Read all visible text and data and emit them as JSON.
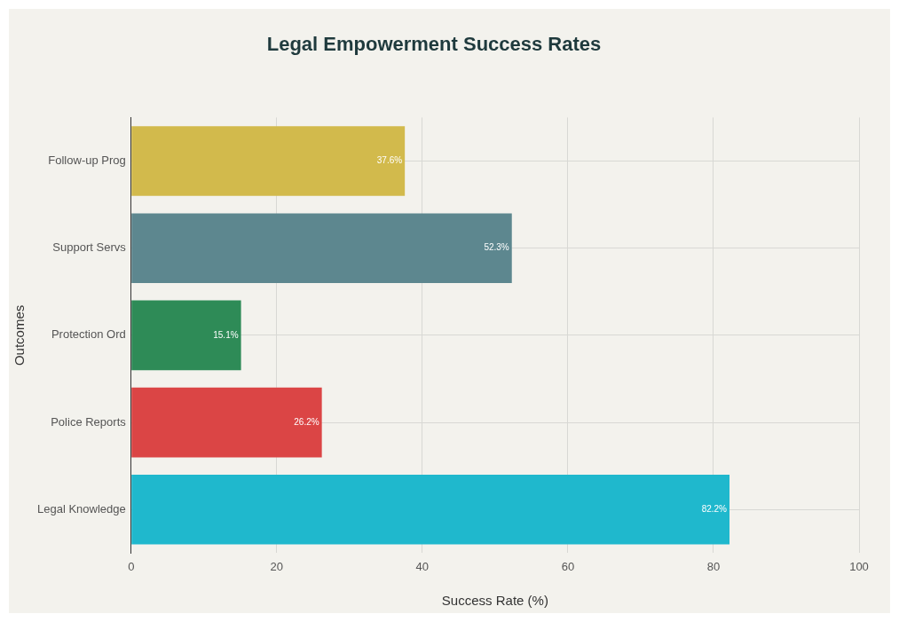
{
  "chart_data": {
    "type": "bar",
    "orientation": "horizontal",
    "title": "Legal Empowerment Success Rates",
    "xlabel": "Success Rate (%)",
    "ylabel": "Outcomes",
    "categories": [
      "Follow-up Prog",
      "Support Servs",
      "Protection Ord",
      "Police Reports",
      "Legal Knowledge"
    ],
    "values": [
      37.6,
      52.3,
      15.1,
      26.2,
      82.2
    ],
    "value_labels": [
      "37.6%",
      "52.3%",
      "15.1%",
      "26.2%",
      "82.2%"
    ],
    "colors": [
      "#d2ba4c",
      "#5d878f",
      "#2e8b57",
      "#db4545",
      "#1fb8cd"
    ],
    "xlim": [
      0,
      100
    ],
    "xticks": [
      0,
      20,
      40,
      60,
      80,
      100
    ],
    "grid": true
  }
}
